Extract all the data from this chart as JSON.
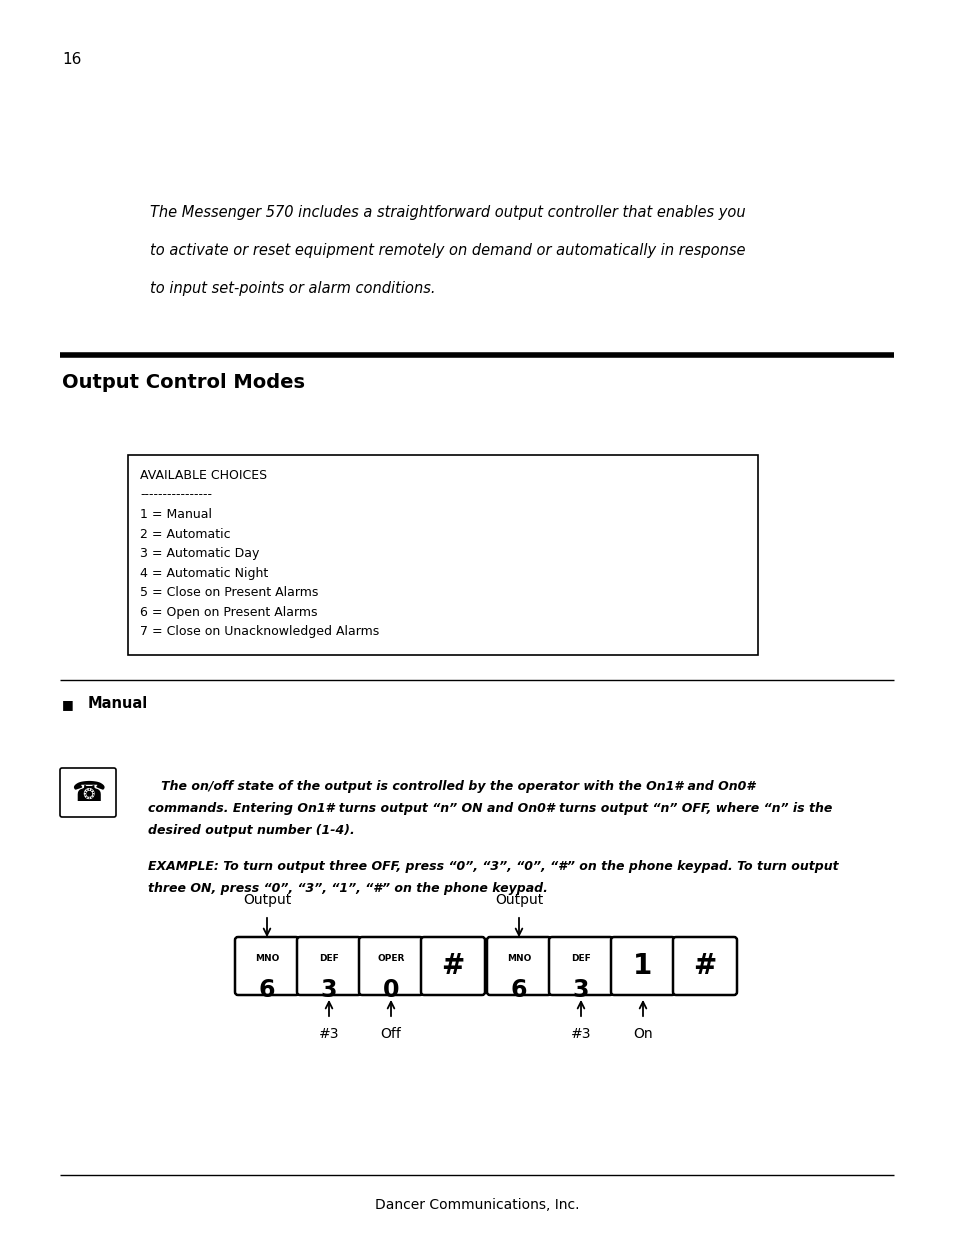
{
  "page_number": "16",
  "intro_text_line1": "The Messenger 570 includes a straightforward output controller that enables you",
  "intro_text_line2": "to activate or reset equipment remotely on demand or automatically in response",
  "intro_text_line3": "to input set-points or alarm conditions.",
  "section_title": "Output Control Modes",
  "code_box_lines": [
    "AVAILABLE CHOICES",
    "----------------",
    "1 = Manual",
    "2 = Automatic",
    "3 = Automatic Day",
    "4 = Automatic Night",
    "5 = Close on Present Alarms",
    "6 = Open on Present Alarms",
    "7 = Close on Unacknowledged Alarms"
  ],
  "bullet_label": "Manual",
  "note_line1": "   The on/off state of the output is controlled by the operator with the On1# and On0#",
  "note_line2": "commands. Entering On1# turns output “n” ON and On0# turns output “n” OFF, where “n” is the",
  "note_line3": "desired output number (1-4).",
  "example_line1": "EXAMPLE: To turn output three OFF, press “0”, “3”, “0”, “#” on the phone keypad. To turn output",
  "example_line2": "three ON, press “0”, “3”, “1”, “#” on the phone keypad.",
  "footer": "Dancer Communications, Inc.",
  "background_color": "#ffffff",
  "text_color": "#000000"
}
